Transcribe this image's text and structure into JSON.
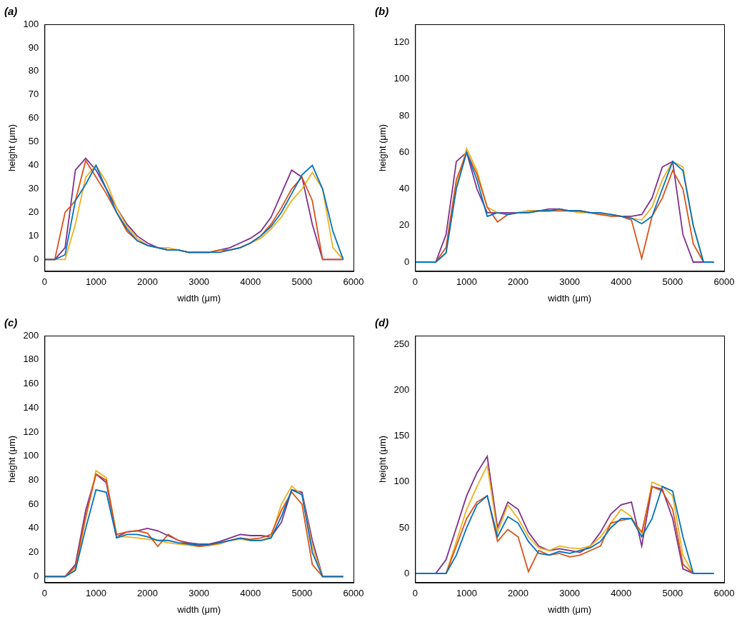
{
  "chart_data": [
    {
      "type": "line",
      "title": "(a)",
      "x_label": "width (μm)",
      "y_label": "height (μm)",
      "grid": false,
      "x": [
        0,
        200,
        400,
        600,
        800,
        1000,
        1200,
        1400,
        1600,
        1800,
        2000,
        2200,
        2400,
        2600,
        2800,
        3000,
        3200,
        3400,
        3600,
        3800,
        4000,
        4200,
        4400,
        4600,
        4800,
        5000,
        5200,
        5400,
        5600,
        5800
      ],
      "xlim": [
        0,
        6000
      ],
      "xticks": [
        0,
        1000,
        2000,
        3000,
        4000,
        5000,
        6000
      ],
      "ylim": [
        -5,
        100
      ],
      "yticks": [
        0,
        10,
        20,
        30,
        40,
        50,
        60,
        70,
        80,
        90,
        100
      ],
      "series": [
        {
          "color": "#0072bd",
          "values": [
            0,
            0,
            2,
            25,
            32,
            40,
            30,
            20,
            13,
            8,
            6,
            5,
            4,
            4,
            3,
            3,
            3,
            3,
            4,
            5,
            7,
            10,
            14,
            20,
            28,
            36,
            40,
            30,
            12,
            0
          ]
        },
        {
          "color": "#d95319",
          "values": [
            0,
            0,
            20,
            25,
            42,
            35,
            28,
            20,
            12,
            8,
            6,
            5,
            4,
            4,
            3,
            3,
            3,
            4,
            4,
            5,
            7,
            10,
            15,
            22,
            30,
            35,
            25,
            0,
            0,
            0
          ]
        },
        {
          "color": "#edb120",
          "values": [
            0,
            0,
            0,
            15,
            35,
            40,
            33,
            22,
            14,
            9,
            6,
            5,
            5,
            4,
            3,
            3,
            3,
            4,
            4,
            5,
            7,
            9,
            13,
            18,
            25,
            30,
            37,
            30,
            5,
            0
          ]
        },
        {
          "color": "#7e2f8e",
          "values": [
            0,
            0,
            5,
            38,
            43,
            38,
            30,
            22,
            15,
            10,
            7,
            5,
            4,
            4,
            3,
            3,
            3,
            4,
            5,
            7,
            9,
            12,
            18,
            28,
            38,
            35,
            15,
            0,
            0,
            0
          ]
        }
      ]
    },
    {
      "type": "line",
      "title": "(b)",
      "x_label": "width (μm)",
      "y_label": "height (μm)",
      "grid": false,
      "x": [
        0,
        200,
        400,
        600,
        800,
        1000,
        1200,
        1400,
        1600,
        1800,
        2000,
        2200,
        2400,
        2600,
        2800,
        3000,
        3200,
        3400,
        3600,
        3800,
        4000,
        4200,
        4400,
        4600,
        4800,
        5000,
        5200,
        5400,
        5600,
        5800
      ],
      "xlim": [
        0,
        6000
      ],
      "xticks": [
        0,
        1000,
        2000,
        3000,
        4000,
        5000,
        6000
      ],
      "ylim": [
        -5,
        130
      ],
      "yticks": [
        0,
        20,
        40,
        60,
        80,
        100,
        120
      ],
      "series": [
        {
          "color": "#0072bd",
          "values": [
            0,
            0,
            0,
            5,
            40,
            60,
            45,
            25,
            27,
            26,
            27,
            27,
            28,
            28,
            29,
            28,
            28,
            27,
            27,
            26,
            25,
            24,
            21,
            25,
            40,
            55,
            50,
            20,
            0,
            0
          ]
        },
        {
          "color": "#d95319",
          "values": [
            0,
            0,
            0,
            8,
            45,
            60,
            48,
            30,
            22,
            26,
            27,
            27,
            28,
            28,
            28,
            28,
            28,
            27,
            26,
            25,
            25,
            23,
            2,
            25,
            35,
            50,
            40,
            10,
            0,
            0
          ]
        },
        {
          "color": "#edb120",
          "values": [
            0,
            0,
            0,
            5,
            42,
            62,
            50,
            30,
            27,
            26,
            27,
            28,
            28,
            28,
            29,
            28,
            27,
            27,
            26,
            26,
            25,
            24,
            23,
            30,
            45,
            55,
            52,
            20,
            0,
            0
          ]
        },
        {
          "color": "#7e2f8e",
          "values": [
            0,
            0,
            0,
            15,
            55,
            60,
            40,
            27,
            27,
            27,
            27,
            28,
            28,
            29,
            29,
            28,
            28,
            27,
            26,
            26,
            25,
            25,
            26,
            35,
            52,
            55,
            15,
            0,
            0,
            0
          ]
        }
      ]
    },
    {
      "type": "line",
      "title": "(c)",
      "x_label": "width (μm)",
      "y_label": "height (μm)",
      "grid": false,
      "x": [
        0,
        200,
        400,
        600,
        800,
        1000,
        1200,
        1400,
        1600,
        1800,
        2000,
        2200,
        2400,
        2600,
        2800,
        3000,
        3200,
        3400,
        3600,
        3800,
        4000,
        4200,
        4400,
        4600,
        4800,
        5000,
        5200,
        5400,
        5600,
        5800
      ],
      "xlim": [
        0,
        6000
      ],
      "xticks": [
        0,
        1000,
        2000,
        3000,
        4000,
        5000,
        6000
      ],
      "ylim": [
        -5,
        200
      ],
      "yticks": [
        0,
        20,
        40,
        60,
        80,
        100,
        120,
        140,
        160,
        180,
        200
      ],
      "series": [
        {
          "color": "#0072bd",
          "values": [
            0,
            0,
            0,
            5,
            40,
            72,
            70,
            32,
            35,
            35,
            33,
            30,
            30,
            28,
            27,
            26,
            27,
            28,
            30,
            32,
            30,
            30,
            32,
            50,
            72,
            68,
            20,
            0,
            0,
            0
          ]
        },
        {
          "color": "#d95319",
          "values": [
            0,
            0,
            0,
            8,
            50,
            85,
            80,
            35,
            37,
            38,
            36,
            25,
            35,
            30,
            27,
            25,
            26,
            28,
            30,
            32,
            31,
            32,
            35,
            55,
            70,
            60,
            10,
            0,
            0,
            0
          ]
        },
        {
          "color": "#edb120",
          "values": [
            0,
            0,
            0,
            6,
            48,
            88,
            82,
            33,
            33,
            32,
            31,
            30,
            28,
            27,
            26,
            25,
            26,
            27,
            30,
            31,
            30,
            30,
            33,
            60,
            75,
            68,
            25,
            0,
            0,
            0
          ]
        },
        {
          "color": "#7e2f8e",
          "values": [
            0,
            0,
            0,
            10,
            55,
            85,
            78,
            33,
            37,
            38,
            40,
            38,
            34,
            30,
            28,
            27,
            27,
            29,
            32,
            35,
            34,
            34,
            33,
            45,
            72,
            70,
            30,
            0,
            0,
            0
          ]
        }
      ]
    },
    {
      "type": "line",
      "title": "(d)",
      "x_label": "width (μm)",
      "y_label": "height (μm)",
      "grid": false,
      "x": [
        0,
        200,
        400,
        600,
        800,
        1000,
        1200,
        1400,
        1600,
        1800,
        2000,
        2200,
        2400,
        2600,
        2800,
        3000,
        3200,
        3400,
        3600,
        3800,
        4000,
        4200,
        4400,
        4600,
        4800,
        5000,
        5200,
        5400,
        5600,
        5800
      ],
      "xlim": [
        0,
        6000
      ],
      "xticks": [
        0,
        1000,
        2000,
        3000,
        4000,
        5000,
        6000
      ],
      "ylim": [
        -10,
        260
      ],
      "yticks": [
        0,
        50,
        100,
        150,
        200,
        250
      ],
      "series": [
        {
          "color": "#0072bd",
          "values": [
            0,
            0,
            0,
            0,
            20,
            50,
            75,
            85,
            40,
            62,
            55,
            35,
            22,
            20,
            24,
            22,
            25,
            28,
            35,
            50,
            60,
            60,
            40,
            60,
            95,
            90,
            40,
            0,
            0,
            0
          ]
        },
        {
          "color": "#d95319",
          "values": [
            0,
            0,
            0,
            0,
            30,
            60,
            78,
            85,
            35,
            48,
            40,
            2,
            25,
            20,
            22,
            18,
            20,
            25,
            30,
            55,
            58,
            60,
            45,
            95,
            90,
            70,
            10,
            0,
            0,
            0
          ]
        },
        {
          "color": "#edb120",
          "values": [
            0,
            0,
            0,
            0,
            35,
            70,
            95,
            118,
            45,
            75,
            60,
            40,
            28,
            25,
            30,
            28,
            27,
            30,
            40,
            55,
            70,
            62,
            40,
            100,
            95,
            85,
            20,
            0,
            0,
            0
          ]
        },
        {
          "color": "#7e2f8e",
          "values": [
            0,
            0,
            0,
            15,
            50,
            85,
            110,
            128,
            50,
            78,
            70,
            45,
            30,
            25,
            27,
            25,
            23,
            30,
            45,
            65,
            75,
            78,
            30,
            95,
            92,
            60,
            5,
            0,
            0,
            0
          ]
        }
      ]
    }
  ]
}
